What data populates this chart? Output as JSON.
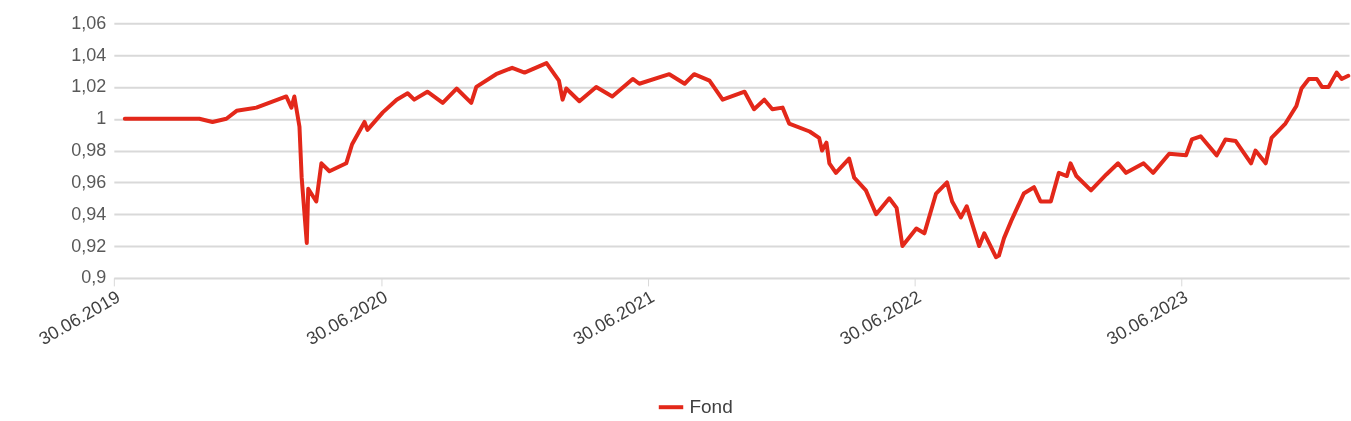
{
  "chart_data": {
    "type": "line",
    "x": [
      "2019-07-15",
      "2019-10-25",
      "2019-11-12",
      "2019-12-01",
      "2019-12-15",
      "2020-01-11",
      "2020-02-21",
      "2020-02-28",
      "2020-03-03",
      "2020-03-10",
      "2020-03-13",
      "2020-03-20",
      "2020-03-22",
      "2020-04-02",
      "2020-04-09",
      "2020-04-20",
      "2020-05-13",
      "2020-05-21",
      "2020-06-07",
      "2020-06-11",
      "2020-07-02",
      "2020-07-21",
      "2020-08-05",
      "2020-08-14",
      "2020-09-01",
      "2020-09-22",
      "2020-10-11",
      "2020-10-31",
      "2020-11-07",
      "2020-12-04",
      "2020-12-26",
      "2021-01-12",
      "2021-02-11",
      "2021-02-28",
      "2021-03-05",
      "2021-03-10",
      "2021-03-28",
      "2021-04-20",
      "2021-05-12",
      "2021-06-09",
      "2021-06-18",
      "2021-07-29",
      "2021-08-19",
      "2021-09-01",
      "2021-09-22",
      "2021-10-10",
      "2021-11-09",
      "2021-11-22",
      "2021-12-06",
      "2021-12-17",
      "2021-12-31",
      "2022-01-09",
      "2022-02-06",
      "2022-02-19",
      "2022-02-23",
      "2022-03-01",
      "2022-03-05",
      "2022-03-14",
      "2022-04-01",
      "2022-04-08",
      "2022-04-24",
      "2022-05-08",
      "2022-05-26",
      "2022-06-05",
      "2022-06-13",
      "2022-07-02",
      "2022-07-13",
      "2022-07-29",
      "2022-08-13",
      "2022-08-20",
      "2022-09-01",
      "2022-09-09",
      "2022-09-26",
      "2022-10-03",
      "2022-10-19",
      "2022-10-23",
      "2022-10-30",
      "2022-11-09",
      "2022-11-26",
      "2022-12-10",
      "2022-12-19",
      "2023-01-02",
      "2023-01-13",
      "2023-01-24",
      "2023-01-29",
      "2023-02-06",
      "2023-02-26",
      "2023-03-19",
      "2023-04-04",
      "2023-04-15",
      "2023-05-09",
      "2023-05-22",
      "2023-06-13",
      "2023-07-06",
      "2023-07-14",
      "2023-07-26",
      "2023-08-17",
      "2023-08-29",
      "2023-09-12",
      "2023-10-03",
      "2023-10-09",
      "2023-10-23",
      "2023-10-31",
      "2023-11-19",
      "2023-12-04",
      "2023-12-11",
      "2023-12-21",
      "2024-01-01",
      "2024-01-08",
      "2024-01-17",
      "2024-01-28",
      "2024-02-04",
      "2024-02-13"
    ],
    "series": [
      {
        "name": "Fond",
        "color": "#e3281a",
        "values": [
          1.0,
          1.0,
          0.998,
          1.0,
          1.005,
          1.007,
          1.014,
          1.007,
          1.014,
          0.995,
          0.963,
          0.922,
          0.956,
          0.948,
          0.972,
          0.967,
          0.972,
          0.984,
          0.998,
          0.993,
          1.004,
          1.012,
          1.016,
          1.012,
          1.017,
          1.01,
          1.019,
          1.01,
          1.02,
          1.028,
          1.032,
          1.029,
          1.035,
          1.024,
          1.012,
          1.019,
          1.011,
          1.02,
          1.014,
          1.025,
          1.022,
          1.028,
          1.022,
          1.028,
          1.024,
          1.012,
          1.017,
          1.006,
          1.012,
          1.006,
          1.007,
          0.997,
          0.992,
          0.988,
          0.98,
          0.985,
          0.972,
          0.966,
          0.975,
          0.963,
          0.955,
          0.94,
          0.95,
          0.944,
          0.92,
          0.931,
          0.928,
          0.953,
          0.96,
          0.948,
          0.938,
          0.945,
          0.92,
          0.928,
          0.913,
          0.914,
          0.925,
          0.936,
          0.953,
          0.957,
          0.948,
          0.948,
          0.966,
          0.964,
          0.972,
          0.964,
          0.955,
          0.965,
          0.972,
          0.966,
          0.972,
          0.966,
          0.978,
          0.977,
          0.987,
          0.989,
          0.977,
          0.987,
          0.986,
          0.972,
          0.98,
          0.972,
          0.988,
          0.997,
          1.008,
          1.019,
          1.025,
          1.025,
          1.02,
          1.02,
          1.029,
          1.025,
          1.027
        ]
      }
    ],
    "xlim": [
      "2019-06-30",
      "2024-02-14"
    ],
    "xticks": [
      {
        "value": "2019-06-30",
        "label": "30.06.2019"
      },
      {
        "value": "2020-06-30",
        "label": "30.06.2020"
      },
      {
        "value": "2021-06-30",
        "label": "30.06.2021"
      },
      {
        "value": "2022-06-30",
        "label": "30.06.2022"
      },
      {
        "value": "2023-06-30",
        "label": "30.06.2023"
      }
    ],
    "ylim": [
      0.9,
      1.06
    ],
    "yticks": [
      {
        "value": 0.9,
        "label": "0,9"
      },
      {
        "value": 0.92,
        "label": "0,92"
      },
      {
        "value": 0.94,
        "label": "0,94"
      },
      {
        "value": 0.96,
        "label": "0,96"
      },
      {
        "value": 0.98,
        "label": "0,98"
      },
      {
        "value": 1,
        "label": "1"
      },
      {
        "value": 1.02,
        "label": "1,02"
      },
      {
        "value": 1.04,
        "label": "1,04"
      },
      {
        "value": 1.06,
        "label": "1,06"
      }
    ],
    "grid": "y",
    "legend": "bottom",
    "marker": "none",
    "line_style": "solid"
  }
}
